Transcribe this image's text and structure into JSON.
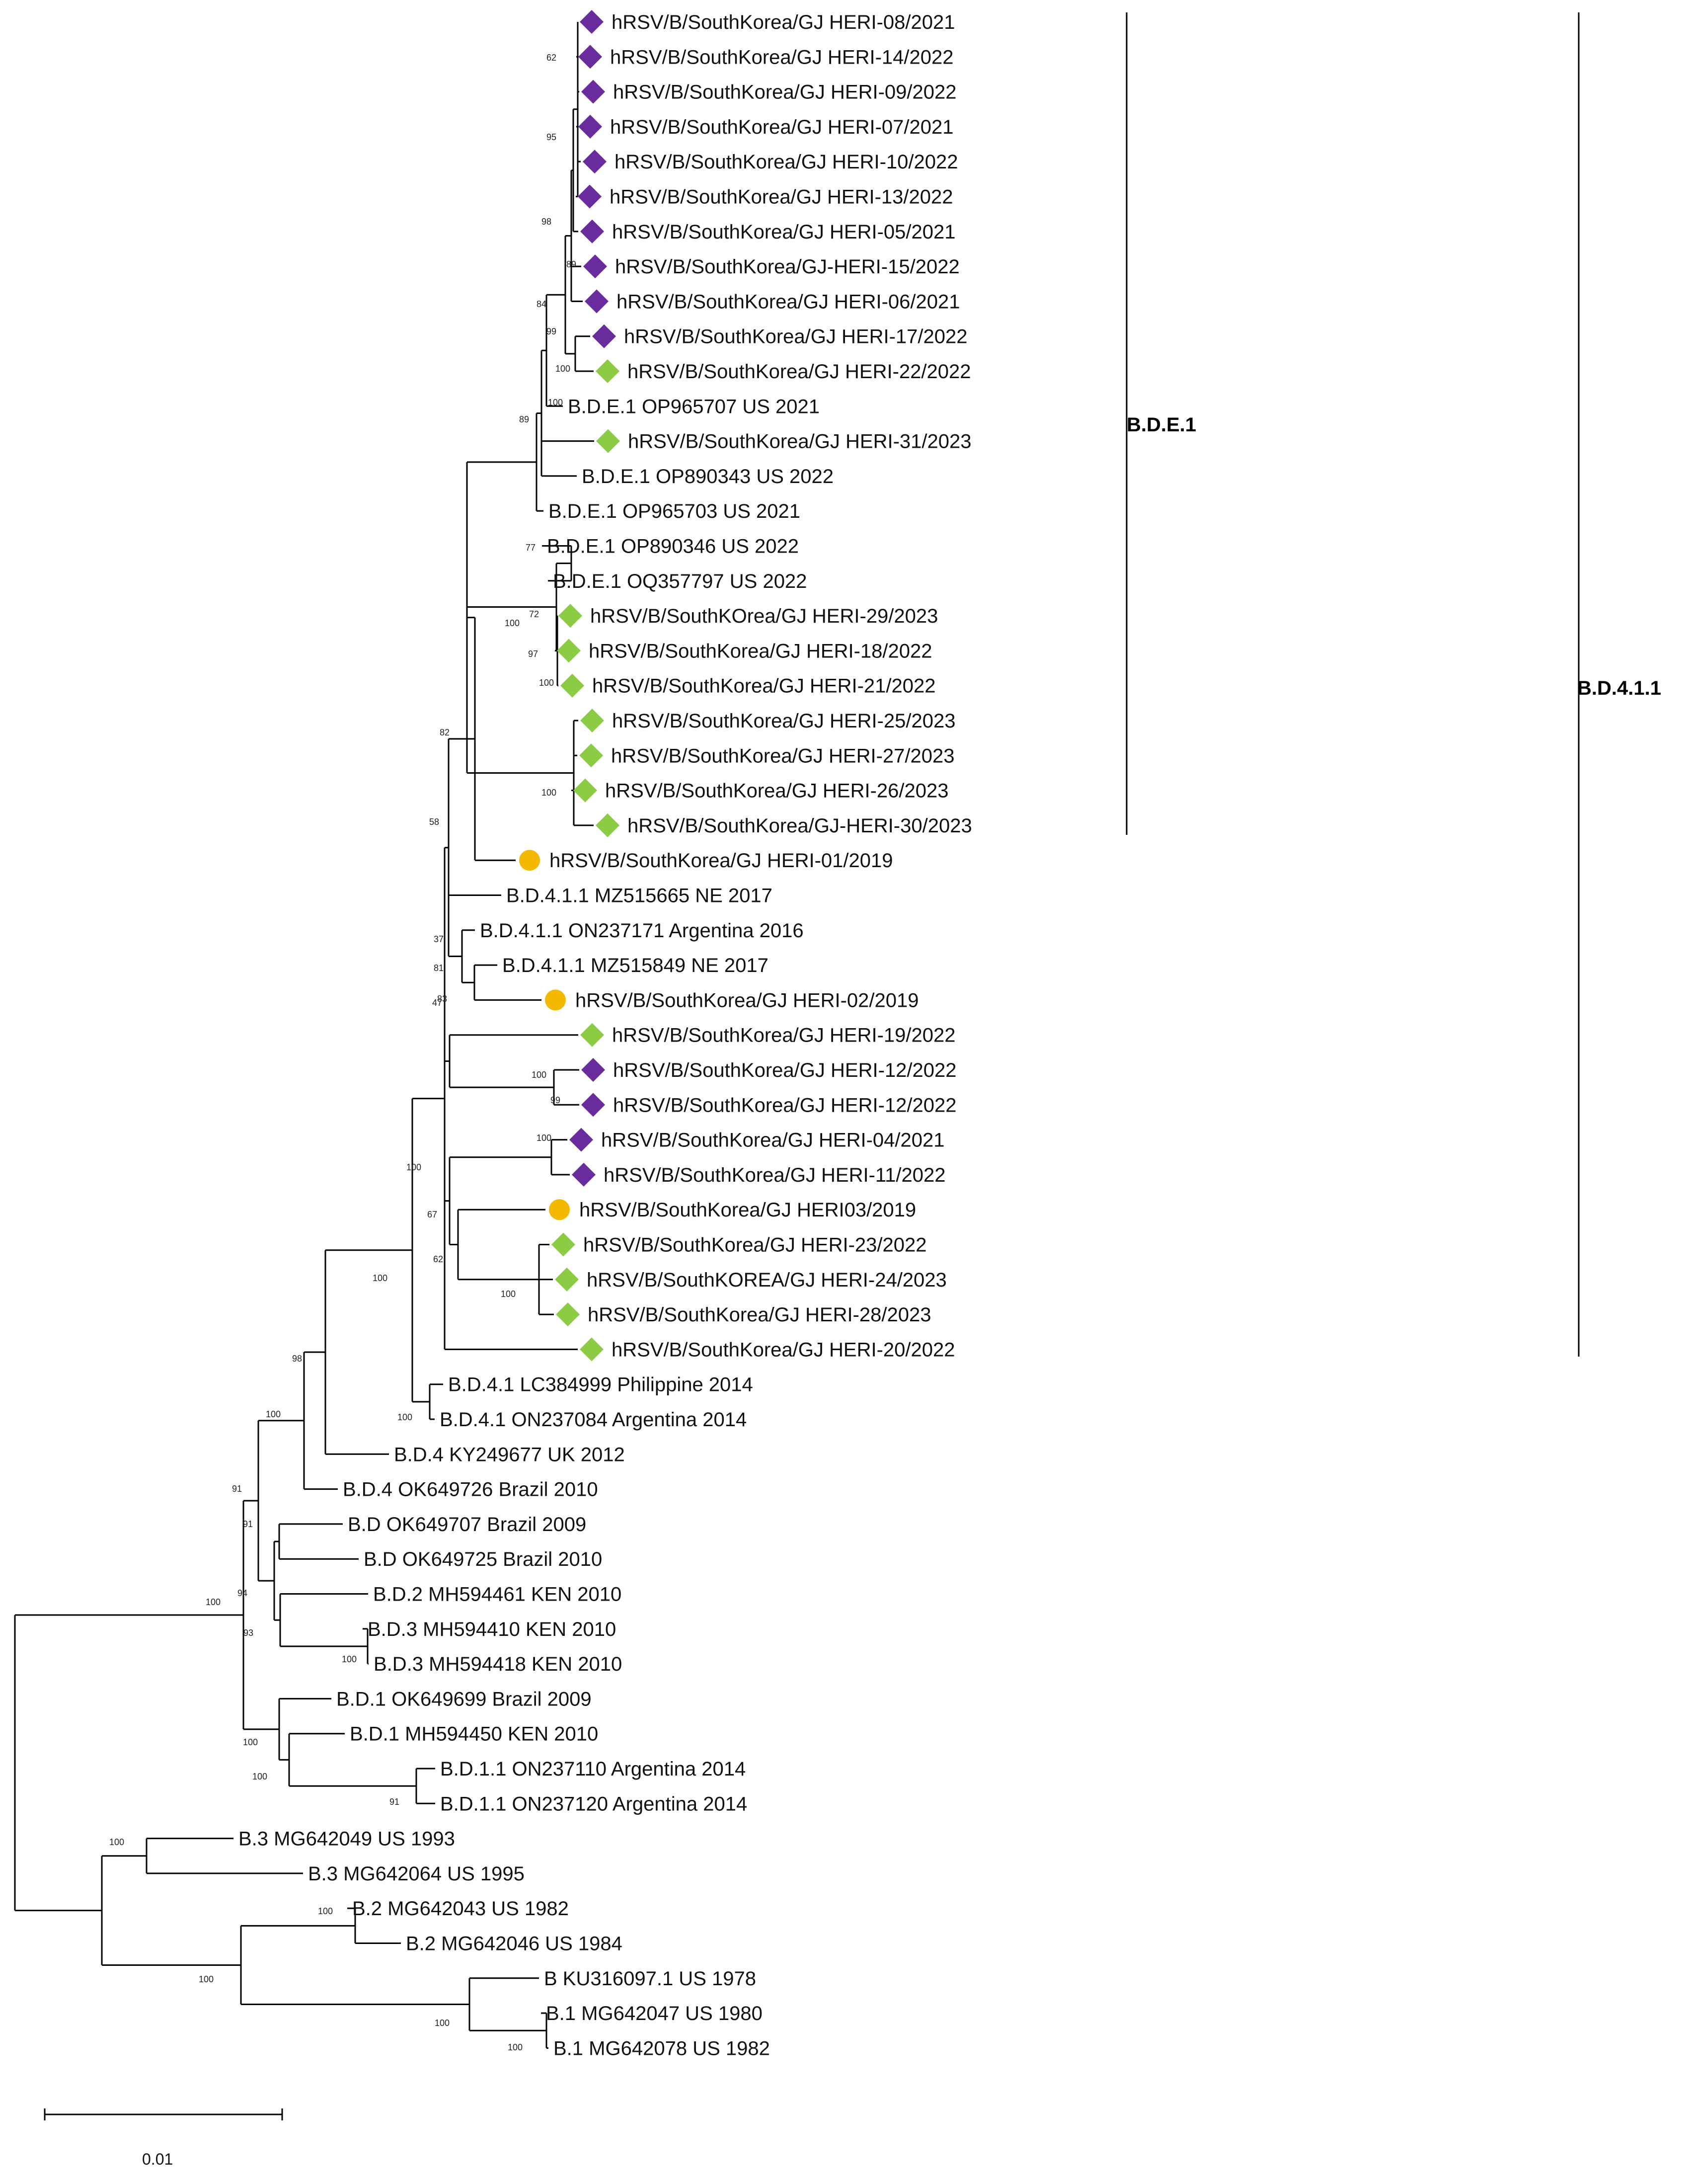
{
  "colors": {
    "purple": "#6a2c9c",
    "green": "#8ccc45",
    "yellow": "#f5b800",
    "line": "#000000"
  },
  "clades": [
    {
      "label": "B.D.E.1"
    },
    {
      "label": "B.D.4.1.1"
    }
  ],
  "scale_bar": {
    "label": "0.01"
  },
  "leaves": [
    {
      "label": "hRSV/B/SouthKorea/GJ HERI-08/2021",
      "marker": "purple-diamond"
    },
    {
      "label": "hRSV/B/SouthKorea/GJ HERI-14/2022",
      "marker": "purple-diamond"
    },
    {
      "label": "hRSV/B/SouthKorea/GJ HERI-09/2022",
      "marker": "purple-diamond"
    },
    {
      "label": "hRSV/B/SouthKorea/GJ HERI-07/2021",
      "marker": "purple-diamond"
    },
    {
      "label": "hRSV/B/SouthKorea/GJ HERI-10/2022",
      "marker": "purple-diamond"
    },
    {
      "label": "hRSV/B/SouthKorea/GJ HERI-13/2022",
      "marker": "purple-diamond"
    },
    {
      "label": "hRSV/B/SouthKorea/GJ HERI-05/2021",
      "marker": "purple-diamond"
    },
    {
      "label": "hRSV/B/SouthKorea/GJ-HERI-15/2022",
      "marker": "purple-diamond"
    },
    {
      "label": "hRSV/B/SouthKorea/GJ HERI-06/2021",
      "marker": "purple-diamond"
    },
    {
      "label": "hRSV/B/SouthKorea/GJ HERI-17/2022",
      "marker": "purple-diamond"
    },
    {
      "label": "hRSV/B/SouthKorea/GJ HERI-22/2022",
      "marker": "green-diamond"
    },
    {
      "label": "B.D.E.1 OP965707 US 2021",
      "marker": "none"
    },
    {
      "label": "hRSV/B/SouthKorea/GJ HERI-31/2023",
      "marker": "green-diamond"
    },
    {
      "label": "B.D.E.1 OP890343 US 2022",
      "marker": "none"
    },
    {
      "label": "B.D.E.1 OP965703 US 2021",
      "marker": "none"
    },
    {
      "label": "B.D.E.1 OP890346 US 2022",
      "marker": "none"
    },
    {
      "label": "B.D.E.1 OQ357797 US 2022",
      "marker": "none"
    },
    {
      "label": "hRSV/B/SouthKOrea/GJ HERI-29/2023",
      "marker": "green-diamond"
    },
    {
      "label": "hRSV/B/SouthKorea/GJ HERI-18/2022",
      "marker": "green-diamond"
    },
    {
      "label": "hRSV/B/SouthKorea/GJ HERI-21/2022",
      "marker": "green-diamond"
    },
    {
      "label": "hRSV/B/SouthKorea/GJ HERI-25/2023",
      "marker": "green-diamond"
    },
    {
      "label": "hRSV/B/SouthKorea/GJ HERI-27/2023",
      "marker": "green-diamond"
    },
    {
      "label": "hRSV/B/SouthKorea/GJ HERI-26/2023",
      "marker": "green-diamond"
    },
    {
      "label": "hRSV/B/SouthKorea/GJ-HERI-30/2023",
      "marker": "green-diamond"
    },
    {
      "label": "hRSV/B/SouthKorea/GJ HERI-01/2019",
      "marker": "yellow-circle"
    },
    {
      "label": "B.D.4.1.1 MZ515665 NE 2017",
      "marker": "none"
    },
    {
      "label": "B.D.4.1.1 ON237171 Argentina 2016",
      "marker": "none"
    },
    {
      "label": "B.D.4.1.1 MZ515849 NE 2017",
      "marker": "none"
    },
    {
      "label": "hRSV/B/SouthKorea/GJ HERI-02/2019",
      "marker": "yellow-circle"
    },
    {
      "label": "hRSV/B/SouthKorea/GJ HERI-19/2022",
      "marker": "green-diamond"
    },
    {
      "label": "hRSV/B/SouthKorea/GJ HERI-12/2022",
      "marker": "purple-diamond"
    },
    {
      "label": "hRSV/B/SouthKorea/GJ HERI-12/2022",
      "marker": "purple-diamond"
    },
    {
      "label": "hRSV/B/SouthKorea/GJ HERI-04/2021",
      "marker": "purple-diamond"
    },
    {
      "label": "hRSV/B/SouthKorea/GJ HERI-11/2022",
      "marker": "purple-diamond"
    },
    {
      "label": "hRSV/B/SouthKorea/GJ HERI03/2019",
      "marker": "yellow-circle"
    },
    {
      "label": "hRSV/B/SouthKorea/GJ HERI-23/2022",
      "marker": "green-diamond"
    },
    {
      "label": "hRSV/B/SouthKOREA/GJ HERI-24/2023",
      "marker": "green-diamond"
    },
    {
      "label": "hRSV/B/SouthKorea/GJ HERI-28/2023",
      "marker": "green-diamond"
    },
    {
      "label": "hRSV/B/SouthKorea/GJ HERI-20/2022",
      "marker": "green-diamond"
    },
    {
      "label": "B.D.4.1 LC384999 Philippine 2014",
      "marker": "none"
    },
    {
      "label": "B.D.4.1 ON237084 Argentina 2014",
      "marker": "none"
    },
    {
      "label": "B.D.4 KY249677 UK 2012",
      "marker": "none"
    },
    {
      "label": "B.D.4 OK649726 Brazil 2010",
      "marker": "none"
    },
    {
      "label": "B.D OK649707 Brazil 2009",
      "marker": "none"
    },
    {
      "label": "B.D OK649725 Brazil 2010",
      "marker": "none"
    },
    {
      "label": "B.D.2 MH594461 KEN 2010",
      "marker": "none"
    },
    {
      "label": "B.D.3 MH594410 KEN 2010",
      "marker": "none"
    },
    {
      "label": "B.D.3 MH594418 KEN 2010",
      "marker": "none"
    },
    {
      "label": "B.D.1 OK649699 Brazil 2009",
      "marker": "none"
    },
    {
      "label": "B.D.1 MH594450 KEN 2010",
      "marker": "none"
    },
    {
      "label": "B.D.1.1 ON237110 Argentina 2014",
      "marker": "none"
    },
    {
      "label": "B.D.1.1 ON237120 Argentina 2014",
      "marker": "none"
    },
    {
      "label": "B.3 MG642049 US 1993",
      "marker": "none"
    },
    {
      "label": "B.3 MG642064 US 1995",
      "marker": "none"
    },
    {
      "label": "B.2 MG642043 US 1982",
      "marker": "none"
    },
    {
      "label": "B.2 MG642046 US 1984",
      "marker": "none"
    },
    {
      "label": "B KU316097.1 US 1978",
      "marker": "none"
    },
    {
      "label": "B.1 MG642047 US 1980",
      "marker": "none"
    },
    {
      "label": "B.1 MG642078 US 1982",
      "marker": "none"
    }
  ],
  "support_values": [
    "62",
    "95",
    "98",
    "89",
    "84",
    "99",
    "100",
    "100",
    "89",
    "77",
    "72",
    "100",
    "97",
    "100",
    "100",
    "82",
    "58",
    "37",
    "81",
    "83",
    "47",
    "100",
    "99",
    "100",
    "100",
    "67",
    "62",
    "100",
    "100",
    "100",
    "98",
    "100",
    "91",
    "91",
    "94",
    "93",
    "100",
    "100",
    "100",
    "91",
    "100",
    "100",
    "100",
    "100",
    "100",
    "100"
  ]
}
